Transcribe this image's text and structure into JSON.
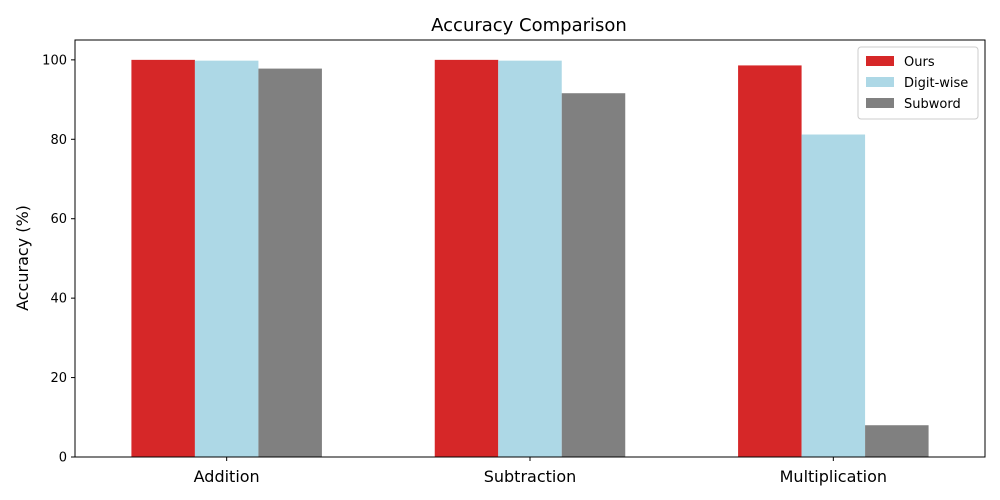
{
  "chart_data": {
    "type": "bar",
    "title": "Accuracy Comparison",
    "xlabel": "",
    "ylabel": "Accuracy (%)",
    "categories": [
      "Addition",
      "Subtraction",
      "Multiplication"
    ],
    "series": [
      {
        "name": "Ours",
        "color": "#d62728",
        "values": [
          100.0,
          100.0,
          98.6
        ]
      },
      {
        "name": "Digit-wise",
        "color": "#add8e6",
        "values": [
          99.8,
          99.8,
          81.2
        ]
      },
      {
        "name": "Subword",
        "color": "#808080",
        "values": [
          97.8,
          91.6,
          8.0
        ]
      }
    ],
    "ylim": [
      0,
      105
    ],
    "yticks": [
      0,
      20,
      40,
      60,
      80,
      100
    ],
    "grid": false,
    "legend_position": "top-right"
  }
}
